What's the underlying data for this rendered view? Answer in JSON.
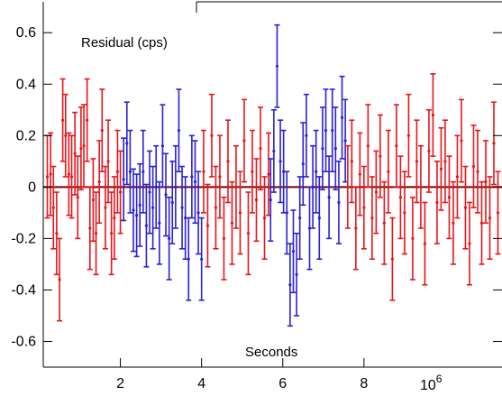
{
  "chart_data": {
    "type": "scatter",
    "title": "",
    "annotation_top": "Residual (cps)",
    "xlabel": "Seconds",
    "x_multiplier": "10",
    "x_multiplier_exp": "6",
    "xlim": [
      0.1,
      11.4
    ],
    "ylim": [
      -0.7,
      0.72
    ],
    "x_ticks": [
      {
        "value": 2,
        "label": "2"
      },
      {
        "value": 4,
        "label": "4"
      },
      {
        "value": 6,
        "label": "6"
      },
      {
        "value": 8,
        "label": "8"
      }
    ],
    "y_ticks": [
      {
        "value": 0.6,
        "label": "0.6"
      },
      {
        "value": 0.4,
        "label": "0.4"
      },
      {
        "value": 0.2,
        "label": "0.2"
      },
      {
        "value": 0,
        "label": "0"
      },
      {
        "value": -0.2,
        "label": "-0.2"
      },
      {
        "value": -0.4,
        "label": "-0.4"
      },
      {
        "value": -0.6,
        "label": "-0.6"
      }
    ],
    "zero_line": 0,
    "error_bar": 0.16,
    "colors": {
      "red": "#e8151b",
      "blue": "#2b21d6",
      "zero_line": "#7a0000",
      "axis": "#000000"
    },
    "series": [
      {
        "color": "red",
        "x": [
          0.2,
          0.28,
          0.35,
          0.43,
          0.5,
          0.58,
          0.65,
          0.73,
          0.8,
          0.88,
          0.95,
          1.03,
          1.1,
          1.18,
          1.25,
          1.33,
          1.4,
          1.48,
          1.55,
          1.63,
          1.7,
          1.78,
          1.85,
          1.93,
          2.0
        ],
        "y": [
          0.04,
          0.05,
          -0.08,
          -0.18,
          -0.36,
          0.26,
          0.2,
          0.05,
          0.04,
          0.13,
          -0.04,
          0.15,
          0.16,
          0.26,
          -0.16,
          -0.05,
          -0.18,
          0.02,
          0.22,
          -0.08,
          0.1,
          -0.18,
          -0.12,
          0.06,
          -0.02
        ]
      },
      {
        "color": "blue",
        "x": [
          2.08,
          2.16,
          2.24,
          2.32,
          2.4,
          2.48,
          2.56,
          2.64,
          2.72,
          2.8,
          2.88,
          2.96,
          3.04,
          3.12,
          3.2,
          3.28,
          3.36,
          3.44,
          3.52,
          3.6,
          3.68,
          3.76,
          3.84,
          3.92,
          4.0
        ],
        "y": [
          0.03,
          0.17,
          0.06,
          -0.09,
          -0.11,
          -0.07,
          0.06,
          -0.15,
          -0.02,
          -0.08,
          0.0,
          -0.14,
          0.16,
          -0.03,
          -0.2,
          -0.06,
          0.0,
          0.22,
          -0.08,
          -0.12,
          -0.28,
          0.04,
          0.02,
          -0.1,
          -0.28
        ]
      },
      {
        "color": "red",
        "x": [
          4.05,
          4.15,
          4.25,
          4.35,
          4.45,
          4.55,
          4.65,
          4.75,
          4.85,
          4.95,
          5.05,
          5.15,
          5.25,
          5.35,
          5.45,
          5.55,
          5.65
        ],
        "y": [
          0.06,
          -0.15,
          0.2,
          -0.08,
          0.04,
          -0.2,
          0.1,
          -0.14,
          0.0,
          -0.1,
          0.18,
          -0.18,
          0.06,
          -0.05,
          0.15,
          -0.12,
          0.05
        ]
      },
      {
        "color": "blue",
        "x": [
          5.7,
          5.78,
          5.86,
          5.94,
          6.02,
          6.1,
          6.18,
          6.26,
          6.34,
          6.42,
          6.5,
          6.58,
          6.66,
          6.74,
          6.82,
          6.9,
          6.98,
          7.06,
          7.14,
          7.22,
          7.3,
          7.38,
          7.46,
          7.54
        ],
        "y": [
          -0.05,
          0.14,
          0.47,
          0.1,
          0.06,
          -0.1,
          -0.38,
          -0.25,
          -0.34,
          -0.12,
          0.09,
          0.2,
          -0.16,
          0.0,
          0.06,
          -0.12,
          0.15,
          0.22,
          -0.04,
          0.22,
          0.15,
          -0.06,
          0.27,
          0.18
        ]
      },
      {
        "color": "red",
        "x": [
          7.6,
          7.7,
          7.8,
          7.9,
          8.0,
          8.1,
          8.2,
          8.3,
          8.4,
          8.5,
          8.6,
          8.7,
          8.8,
          8.9,
          9.0,
          9.1,
          9.2,
          9.3,
          9.4,
          9.5,
          9.6,
          9.7,
          9.8,
          9.9,
          10.0,
          10.1,
          10.2,
          10.3,
          10.4,
          10.5,
          10.6,
          10.7,
          10.8,
          10.9,
          11.0,
          11.1,
          11.2,
          11.3
        ],
        "y": [
          0.0,
          0.1,
          -0.16,
          0.05,
          -0.08,
          0.16,
          -0.12,
          -0.02,
          0.12,
          -0.14,
          0.06,
          -0.28,
          0.16,
          -0.04,
          -0.1,
          0.2,
          -0.2,
          0.1,
          0.0,
          -0.22,
          0.14,
          0.28,
          -0.06,
          0.07,
          0.1,
          -0.04,
          -0.14,
          0.04,
          0.18,
          -0.08,
          -0.22,
          0.08,
          0.06,
          -0.14,
          0.02,
          -0.12,
          0.17,
          -0.1
        ]
      }
    ]
  }
}
